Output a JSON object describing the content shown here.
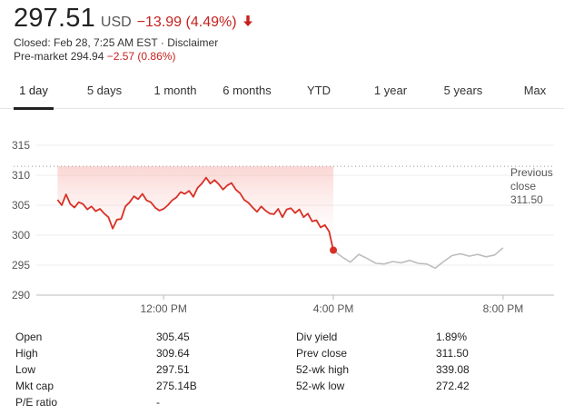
{
  "quote": {
    "price": "297.51",
    "currency": "USD",
    "change": "−13.99 (4.49%)",
    "closed_text": "Closed: Feb 28, 7:25 AM EST · Disclaimer",
    "premarket_label": "Pre-market",
    "premarket_price": "294.94",
    "premarket_change": "−2.57 (0.86%)",
    "negative_color": "#c5221f"
  },
  "tabs": [
    {
      "label": "1 day",
      "active": true
    },
    {
      "label": "5 days",
      "active": false
    },
    {
      "label": "1 month",
      "active": false
    },
    {
      "label": "6 months",
      "active": false
    },
    {
      "label": "YTD",
      "active": false
    },
    {
      "label": "1 year",
      "active": false
    },
    {
      "label": "5 years",
      "active": false
    },
    {
      "label": "Max",
      "active": false
    }
  ],
  "chart_data": {
    "type": "line",
    "ylim": [
      290,
      315
    ],
    "yticks": [
      "315",
      "310",
      "305",
      "300",
      "295",
      "290"
    ],
    "xticks": [
      "12:00 PM",
      "4:00 PM",
      "8:00 PM"
    ],
    "grid": true,
    "previous_close_label": [
      "Previous",
      "close",
      "311.50"
    ],
    "previous_close_value": 311.5,
    "regular_color": "#d93025",
    "extended_color": "#bdbdbd",
    "series": [
      {
        "session": "regular",
        "x": [
          9.5,
          9.6,
          9.7,
          9.8,
          9.9,
          10.0,
          10.1,
          10.2,
          10.3,
          10.4,
          10.5,
          10.6,
          10.7,
          10.8,
          10.9,
          11.0,
          11.1,
          11.2,
          11.3,
          11.4,
          11.5,
          11.6,
          11.7,
          11.8,
          11.9,
          12.0,
          12.1,
          12.2,
          12.3,
          12.4,
          12.5,
          12.6,
          12.7,
          12.8,
          12.9,
          13.0,
          13.1,
          13.2,
          13.3,
          13.4,
          13.5,
          13.6,
          13.7,
          13.8,
          13.9,
          14.0,
          14.1,
          14.2,
          14.3,
          14.4,
          14.5,
          14.6,
          14.7,
          14.8,
          14.9,
          15.0,
          15.1,
          15.2,
          15.3,
          15.4,
          15.5,
          15.6,
          15.7,
          15.8,
          15.9,
          16.0
        ],
        "values": [
          305.9,
          305.0,
          306.8,
          305.2,
          304.6,
          305.5,
          305.2,
          304.3,
          304.8,
          304.0,
          304.4,
          303.6,
          303.0,
          301.1,
          302.6,
          302.7,
          304.8,
          305.5,
          306.5,
          306.0,
          306.9,
          305.8,
          305.5,
          304.6,
          304.1,
          304.4,
          305.0,
          305.8,
          306.3,
          307.2,
          306.9,
          307.4,
          306.4,
          307.9,
          308.6,
          309.6,
          308.6,
          309.2,
          308.5,
          307.6,
          308.3,
          308.7,
          307.6,
          307.0,
          305.9,
          305.4,
          304.6,
          303.9,
          304.8,
          304.1,
          303.6,
          303.5,
          304.4,
          303.0,
          304.3,
          304.5,
          303.7,
          304.3,
          303.0,
          303.6,
          302.3,
          302.5,
          301.3,
          301.7,
          300.6,
          297.5
        ]
      },
      {
        "session": "extended",
        "x": [
          16.0,
          16.2,
          16.4,
          16.6,
          16.8,
          17.0,
          17.2,
          17.4,
          17.6,
          17.8,
          18.0,
          18.2,
          18.4,
          18.6,
          18.8,
          19.0,
          19.2,
          19.4,
          19.6,
          19.8,
          20.0
        ],
        "values": [
          297.5,
          296.4,
          295.5,
          296.8,
          296.1,
          295.3,
          295.2,
          295.6,
          295.4,
          295.8,
          295.3,
          295.2,
          294.5,
          295.6,
          296.6,
          296.9,
          296.5,
          296.8,
          296.4,
          296.7,
          297.9
        ]
      }
    ]
  },
  "stats": {
    "left": [
      {
        "label": "Open",
        "value": "305.45"
      },
      {
        "label": "High",
        "value": "309.64"
      },
      {
        "label": "Low",
        "value": "297.51"
      },
      {
        "label": "Mkt cap",
        "value": "275.14B"
      },
      {
        "label": "P/E ratio",
        "value": "-"
      }
    ],
    "right": [
      {
        "label": "Div yield",
        "value": "1.89%"
      },
      {
        "label": "Prev close",
        "value": "311.50"
      },
      {
        "label": "52-wk high",
        "value": "339.08"
      },
      {
        "label": "52-wk low",
        "value": "272.42"
      }
    ]
  }
}
